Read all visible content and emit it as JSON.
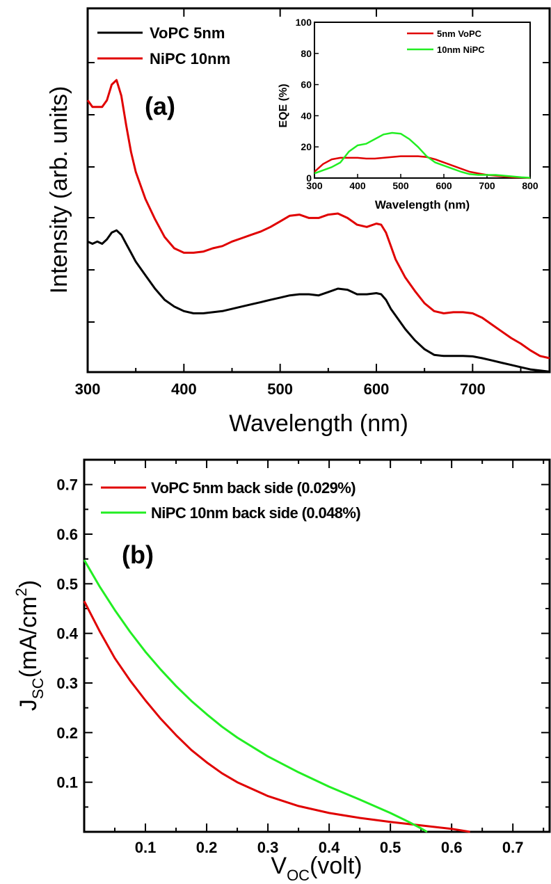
{
  "chart_data": [
    {
      "panel": "(a)",
      "type": "line",
      "xlabel": "Wavelength (nm)",
      "ylabel": "Intensity (arb. units)",
      "xlim": [
        300,
        780
      ],
      "xticks": [
        "300",
        "400",
        "500",
        "600",
        "700"
      ],
      "yticks_labeled": false,
      "legend": "top-left",
      "grid": false,
      "colors": {
        "VoPC 5nm": "#000000",
        "NiPC 10nm": "#e00000"
      },
      "series": [
        {
          "name": "VoPC 5nm",
          "x": [
            300,
            305,
            310,
            315,
            320,
            325,
            330,
            335,
            340,
            345,
            350,
            360,
            370,
            380,
            390,
            400,
            410,
            420,
            430,
            440,
            450,
            460,
            470,
            480,
            490,
            500,
            510,
            520,
            530,
            540,
            550,
            560,
            570,
            580,
            590,
            600,
            605,
            610,
            615,
            620,
            630,
            640,
            650,
            660,
            670,
            680,
            690,
            700,
            710,
            720,
            730,
            740,
            750,
            760,
            770,
            780
          ],
          "y": [
            0.52,
            0.51,
            0.52,
            0.51,
            0.53,
            0.56,
            0.57,
            0.55,
            0.51,
            0.47,
            0.43,
            0.37,
            0.31,
            0.26,
            0.23,
            0.21,
            0.2,
            0.2,
            0.205,
            0.21,
            0.22,
            0.23,
            0.24,
            0.25,
            0.26,
            0.27,
            0.28,
            0.285,
            0.285,
            0.28,
            0.295,
            0.31,
            0.305,
            0.285,
            0.285,
            0.29,
            0.285,
            0.26,
            0.22,
            0.19,
            0.13,
            0.08,
            0.04,
            0.015,
            0.01,
            0.01,
            0.01,
            0.008,
            0.0,
            -0.01,
            -0.02,
            -0.03,
            -0.04,
            -0.05,
            -0.055,
            -0.06
          ]
        },
        {
          "name": "NiPC 10nm",
          "x": [
            300,
            305,
            310,
            315,
            320,
            325,
            330,
            335,
            340,
            345,
            350,
            360,
            370,
            380,
            390,
            400,
            410,
            420,
            430,
            440,
            450,
            460,
            470,
            480,
            490,
            500,
            510,
            520,
            530,
            540,
            550,
            560,
            570,
            580,
            590,
            600,
            605,
            610,
            615,
            620,
            630,
            640,
            650,
            660,
            670,
            680,
            690,
            700,
            710,
            720,
            730,
            740,
            750,
            760,
            770,
            780
          ],
          "y": [
            1.15,
            1.12,
            1.12,
            1.12,
            1.15,
            1.22,
            1.24,
            1.17,
            1.04,
            0.92,
            0.83,
            0.71,
            0.62,
            0.54,
            0.49,
            0.47,
            0.47,
            0.475,
            0.49,
            0.5,
            0.52,
            0.535,
            0.55,
            0.565,
            0.585,
            0.61,
            0.635,
            0.64,
            0.625,
            0.625,
            0.64,
            0.645,
            0.625,
            0.595,
            0.585,
            0.6,
            0.595,
            0.56,
            0.5,
            0.44,
            0.36,
            0.3,
            0.245,
            0.21,
            0.2,
            0.205,
            0.205,
            0.2,
            0.18,
            0.15,
            0.12,
            0.09,
            0.065,
            0.035,
            0.01,
            0.0
          ]
        }
      ],
      "inset": {
        "type": "line",
        "xlabel": "Wavelength (nm)",
        "ylabel": "EQE (%)",
        "xlim": [
          300,
          800
        ],
        "ylim": [
          0,
          100
        ],
        "xticks": [
          "300",
          "400",
          "500",
          "600",
          "700",
          "800"
        ],
        "yticks": [
          "0",
          "20",
          "40",
          "60",
          "80",
          "100"
        ],
        "legend": "top-right",
        "colors": {
          "5nm VoPC": "#e00000",
          "10nm NiPC": "#22ee22"
        },
        "series": [
          {
            "name": "5nm VoPC",
            "x": [
              300,
              320,
              340,
              360,
              380,
              400,
              420,
              440,
              460,
              480,
              500,
              520,
              540,
              560,
              580,
              600,
              620,
              640,
              660,
              680,
              700,
              720,
              740,
              760,
              780,
              800
            ],
            "y": [
              4,
              9,
              12,
              13,
              13,
              13,
              12.5,
              12.5,
              13,
              13.5,
              14,
              14,
              14,
              13.5,
              12,
              10,
              8,
              6,
              4,
              3,
              2,
              1.5,
              1,
              0.5,
              0.3,
              0
            ]
          },
          {
            "name": "10nm NiPC",
            "x": [
              300,
              320,
              340,
              360,
              380,
              400,
              420,
              440,
              460,
              480,
              500,
              520,
              540,
              560,
              580,
              600,
              620,
              640,
              660,
              680,
              700,
              720,
              740,
              760,
              780,
              800
            ],
            "y": [
              3,
              5,
              7,
              10,
              17,
              21,
              22,
              25,
              28,
              29,
              28.5,
              25,
              20,
              14,
              10,
              8,
              6,
              4,
              2.5,
              2,
              2,
              2,
              1.5,
              1,
              0.5,
              0.2
            ]
          }
        ]
      }
    },
    {
      "panel": "(b)",
      "type": "line",
      "xlabel": "V_OC(volt)",
      "ylabel": "J_SC(mA/cm^2)",
      "xlim": [
        0,
        0.76
      ],
      "ylim": [
        0,
        0.75
      ],
      "xticks": [
        "0.1",
        "0.2",
        "0.3",
        "0.4",
        "0.5",
        "0.6",
        "0.7"
      ],
      "yticks": [
        "0.1",
        "0.2",
        "0.3",
        "0.4",
        "0.5",
        "0.6",
        "0.7"
      ],
      "legend": "top-left",
      "grid": false,
      "colors": {
        "VoPC 5nm back side (0.029%)": "#e00000",
        "NiPC 10nm back side (0.048%)": "#22ee22"
      },
      "series": [
        {
          "name": "VoPC 5nm back side (0.029%)",
          "x": [
            0,
            0.025,
            0.05,
            0.075,
            0.1,
            0.125,
            0.15,
            0.175,
            0.2,
            0.225,
            0.25,
            0.3,
            0.35,
            0.4,
            0.45,
            0.5,
            0.55,
            0.6,
            0.63
          ],
          "y": [
            0.465,
            0.405,
            0.35,
            0.305,
            0.265,
            0.228,
            0.195,
            0.165,
            0.14,
            0.118,
            0.1,
            0.072,
            0.052,
            0.038,
            0.028,
            0.02,
            0.013,
            0.006,
            0.0
          ]
        },
        {
          "name": "NiPC 10nm back side (0.048%)",
          "x": [
            0,
            0.025,
            0.05,
            0.075,
            0.1,
            0.125,
            0.15,
            0.175,
            0.2,
            0.225,
            0.25,
            0.3,
            0.35,
            0.4,
            0.45,
            0.5,
            0.53,
            0.55,
            0.56
          ],
          "y": [
            0.548,
            0.495,
            0.447,
            0.403,
            0.363,
            0.327,
            0.294,
            0.264,
            0.237,
            0.212,
            0.19,
            0.152,
            0.12,
            0.091,
            0.065,
            0.038,
            0.02,
            0.007,
            0.0
          ]
        }
      ]
    }
  ],
  "panel_a": {
    "label": "(a)",
    "xlabel": "Wavelength (nm)",
    "ylabel": "Intensity (arb. units)",
    "legend": [
      "VoPC 5nm",
      "NiPC 10nm"
    ],
    "inset_legend": [
      "5nm VoPC",
      "10nm NiPC"
    ],
    "inset_xlabel": "Wavelength (nm)",
    "inset_ylabel": "EQE (%)"
  },
  "panel_b": {
    "label": "(b)",
    "xlabel_main": "V",
    "xlabel_sub": "OC",
    "xlabel_rest": "(volt)",
    "ylabel_main": "J",
    "ylabel_sub": "SC",
    "ylabel_rest": "(mA/cm",
    "ylabel_sup": "2",
    "ylabel_close": ")",
    "legend": [
      "VoPC 5nm back side (0.029%)",
      "NiPC 10nm back side (0.048%)"
    ]
  }
}
